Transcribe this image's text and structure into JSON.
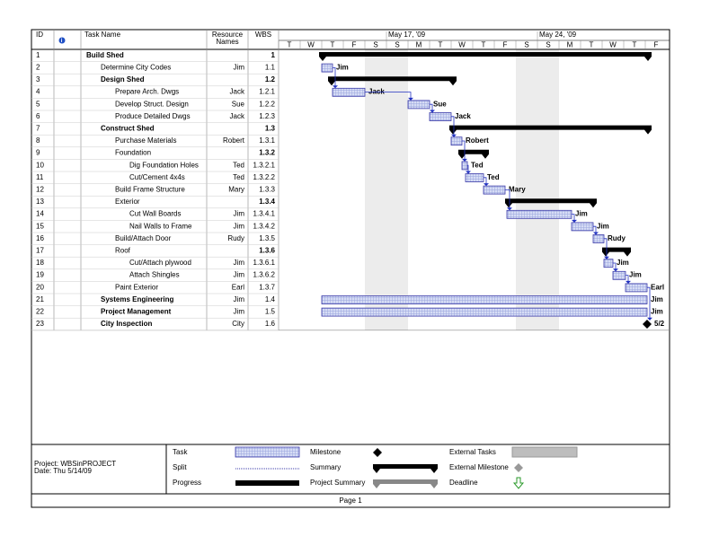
{
  "header": {
    "id": "ID",
    "task_name": "Task Name",
    "resource": [
      "Resource",
      "Names"
    ],
    "wbs": "WBS"
  },
  "timescale": {
    "weeks": [
      "May 17, '09",
      "May 24, '09"
    ],
    "days": [
      "T",
      "W",
      "T",
      "F",
      "S",
      "S",
      "M",
      "T",
      "W",
      "T",
      "F",
      "S",
      "S",
      "M",
      "T",
      "W",
      "T",
      "F"
    ]
  },
  "tasks": [
    {
      "id": 1,
      "name": "Build Shed",
      "resource": "",
      "wbs": "1"
    },
    {
      "id": 2,
      "name": "Determine City Codes",
      "resource": "Jim",
      "wbs": "1.1"
    },
    {
      "id": 3,
      "name": "Design Shed",
      "resource": "",
      "wbs": "1.2"
    },
    {
      "id": 4,
      "name": "Prepare Arch. Dwgs",
      "resource": "Jack",
      "wbs": "1.2.1"
    },
    {
      "id": 5,
      "name": "Develop Struct. Design",
      "resource": "Sue",
      "wbs": "1.2.2"
    },
    {
      "id": 6,
      "name": "Produce Detailed Dwgs",
      "resource": "Jack",
      "wbs": "1.2.3"
    },
    {
      "id": 7,
      "name": "Construct Shed",
      "resource": "",
      "wbs": "1.3"
    },
    {
      "id": 8,
      "name": "Purchase Materials",
      "resource": "Robert",
      "wbs": "1.3.1"
    },
    {
      "id": 9,
      "name": "Foundation",
      "resource": "",
      "wbs": "1.3.2"
    },
    {
      "id": 10,
      "name": "Dig Foundation Holes",
      "resource": "Ted",
      "wbs": "1.3.2.1"
    },
    {
      "id": 11,
      "name": "Cut/Cement 4x4s",
      "resource": "Ted",
      "wbs": "1.3.2.2"
    },
    {
      "id": 12,
      "name": "Build Frame Structure",
      "resource": "Mary",
      "wbs": "1.3.3"
    },
    {
      "id": 13,
      "name": "Exterior",
      "resource": "",
      "wbs": "1.3.4"
    },
    {
      "id": 14,
      "name": "Cut Wall Boards",
      "resource": "Jim",
      "wbs": "1.3.4.1"
    },
    {
      "id": 15,
      "name": "Nail Walls to Frame",
      "resource": "Jim",
      "wbs": "1.3.4.2"
    },
    {
      "id": 16,
      "name": "Build/Attach Door",
      "resource": "Rudy",
      "wbs": "1.3.5"
    },
    {
      "id": 17,
      "name": "Roof",
      "resource": "",
      "wbs": "1.3.6"
    },
    {
      "id": 18,
      "name": "Cut/Attach plywood",
      "resource": "Jim",
      "wbs": "1.3.6.1"
    },
    {
      "id": 19,
      "name": "Attach Shingles",
      "resource": "Jim",
      "wbs": "1.3.6.2"
    },
    {
      "id": 20,
      "name": "Paint Exterior",
      "resource": "Earl",
      "wbs": "1.3.7"
    },
    {
      "id": 21,
      "name": "Systems Engineering",
      "resource": "Jim",
      "wbs": "1.4"
    },
    {
      "id": 22,
      "name": "Project Management",
      "resource": "Jim",
      "wbs": "1.5"
    },
    {
      "id": 23,
      "name": "City Inspection",
      "resource": "City",
      "wbs": "1.6",
      "milestone_date": "5/2"
    }
  ],
  "legend": {
    "project": "Project: WBSinPROJECT",
    "date": "Date: Thu 5/14/09",
    "items": [
      "Task",
      "Split",
      "Progress",
      "Milestone",
      "Summary",
      "Project Summary",
      "External Tasks",
      "External Milestone",
      "Deadline"
    ]
  },
  "footer": "Page 1"
}
